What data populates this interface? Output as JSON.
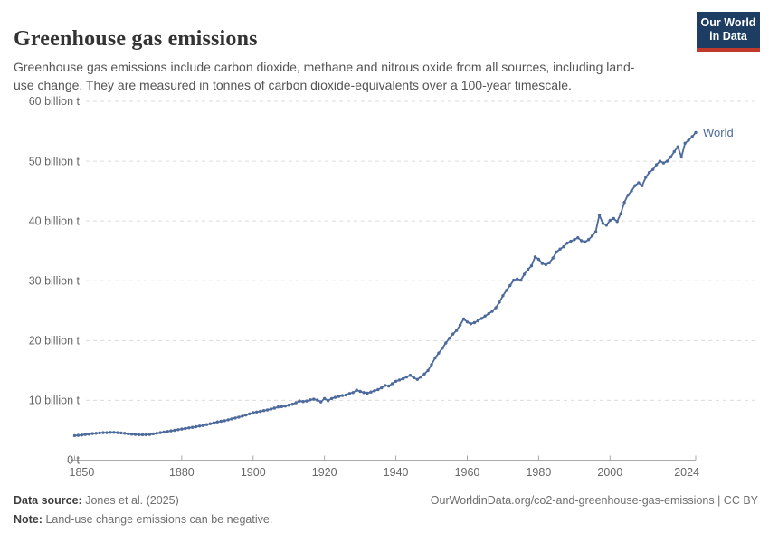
{
  "header": {
    "title": "Greenhouse gas emissions",
    "subtitle": "Greenhouse gas emissions include carbon dioxide, methane and nitrous oxide from all sources, including land-use change. They are measured in tonnes of carbon dioxide-equivalents over a 100-year timescale.",
    "logo": {
      "line1": "Our World",
      "line2": "in Data"
    }
  },
  "chart_data": {
    "type": "line",
    "title": "Greenhouse gas emissions",
    "xlabel": "",
    "ylabel": "",
    "xlim": [
      1850,
      2024
    ],
    "ylim": [
      0,
      60
    ],
    "grid": "horizontal-dashed",
    "legend_position": "end-of-line-label",
    "x_ticks": [
      1850,
      1880,
      1900,
      1920,
      1940,
      1960,
      1980,
      2000,
      2024
    ],
    "y_ticks": [
      {
        "value": 0,
        "label": "0 t"
      },
      {
        "value": 10,
        "label": "10 billion t"
      },
      {
        "value": 20,
        "label": "20 billion t"
      },
      {
        "value": 30,
        "label": "30 billion t"
      },
      {
        "value": 40,
        "label": "40 billion t"
      },
      {
        "value": 50,
        "label": "50 billion t"
      },
      {
        "value": 60,
        "label": "60 billion t"
      }
    ],
    "colors": {
      "line": "#4C6A9C",
      "grid": "#dcdcdc",
      "axis": "#a8a8a8",
      "tick_label": "#666666"
    },
    "series": [
      {
        "name": "World",
        "color": "#4C6A9C",
        "x_start": 1850,
        "x_end": 2024,
        "x_step": 1,
        "unit": "billion t",
        "values": [
          4.1,
          4.15,
          4.2,
          4.3,
          4.35,
          4.45,
          4.5,
          4.55,
          4.6,
          4.6,
          4.65,
          4.65,
          4.6,
          4.55,
          4.5,
          4.4,
          4.35,
          4.3,
          4.25,
          4.25,
          4.25,
          4.3,
          4.4,
          4.5,
          4.6,
          4.7,
          4.8,
          4.9,
          5.0,
          5.1,
          5.2,
          5.3,
          5.4,
          5.5,
          5.6,
          5.7,
          5.8,
          5.95,
          6.1,
          6.25,
          6.4,
          6.5,
          6.6,
          6.75,
          6.9,
          7.05,
          7.2,
          7.35,
          7.55,
          7.75,
          7.95,
          8.05,
          8.15,
          8.3,
          8.4,
          8.55,
          8.7,
          8.9,
          8.95,
          9.05,
          9.2,
          9.35,
          9.6,
          9.9,
          9.8,
          9.9,
          10.1,
          10.2,
          10.05,
          9.75,
          10.3,
          9.95,
          10.3,
          10.5,
          10.65,
          10.8,
          10.9,
          11.15,
          11.3,
          11.7,
          11.5,
          11.3,
          11.2,
          11.4,
          11.6,
          11.8,
          12.1,
          12.5,
          12.4,
          12.8,
          13.2,
          13.4,
          13.6,
          13.9,
          14.2,
          13.8,
          13.5,
          13.9,
          14.4,
          15.0,
          16.0,
          17.1,
          17.9,
          18.7,
          19.6,
          20.4,
          21.1,
          21.7,
          22.6,
          23.6,
          23.1,
          22.8,
          23.0,
          23.3,
          23.7,
          24.1,
          24.5,
          24.9,
          25.5,
          26.4,
          27.5,
          28.4,
          29.2,
          30.1,
          30.3,
          30.1,
          31.1,
          31.9,
          32.5,
          34.0,
          33.6,
          32.9,
          32.7,
          33.0,
          33.8,
          34.8,
          35.3,
          35.7,
          36.3,
          36.6,
          36.9,
          37.2,
          36.7,
          36.5,
          36.9,
          37.5,
          38.2,
          41.0,
          39.6,
          39.3,
          40.1,
          40.4,
          39.9,
          41.2,
          43.1,
          44.3,
          45.0,
          45.9,
          46.4,
          45.9,
          47.3,
          48.1,
          48.6,
          49.4,
          50.0,
          49.7,
          50.0,
          50.7,
          51.6,
          52.4,
          50.7,
          53.0,
          53.5,
          54.1,
          54.8
        ]
      }
    ]
  },
  "footer": {
    "data_source_label": "Data source:",
    "data_source_value": "Jones et al. (2025)",
    "note_label": "Note:",
    "note_value": "Land-use change emissions can be negative.",
    "credit": "OurWorldinData.org/co2-and-greenhouse-gas-emissions | CC BY"
  }
}
